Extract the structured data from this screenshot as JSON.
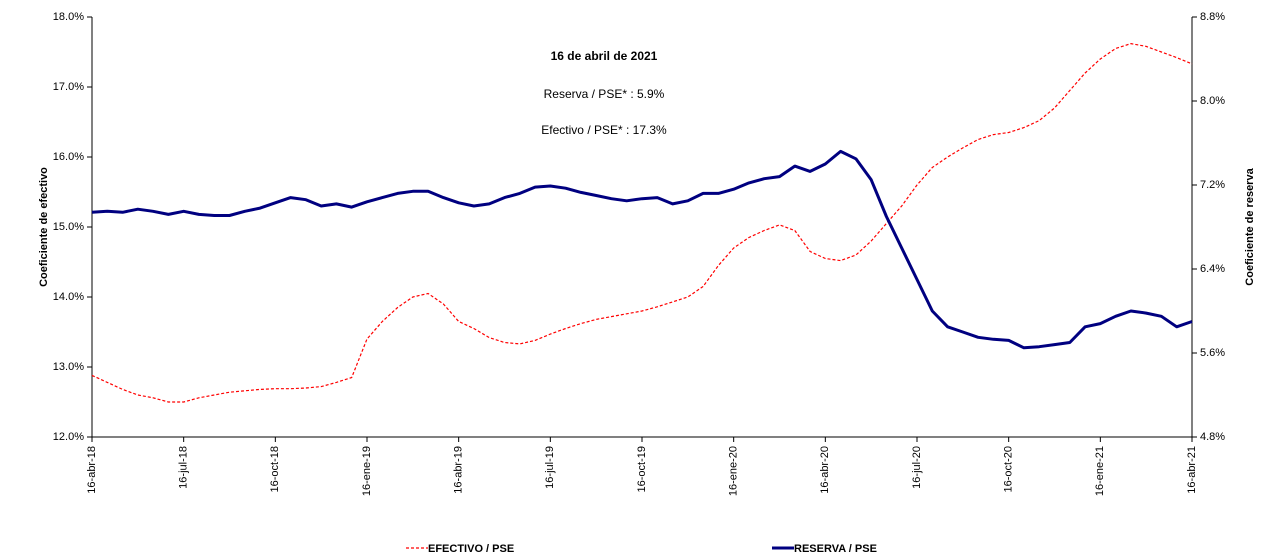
{
  "chart_data": {
    "type": "line",
    "y_label": "Coeficiente de efectivo",
    "y2_label": "Coeficiente de reserva",
    "annotations": [
      "16 de abril de 2021",
      "Reserva / PSE* :   5.9%",
      "Efectivo / PSE* : 17.3%"
    ],
    "categories": [
      "16-abr-18",
      null,
      null,
      null,
      null,
      null,
      "16-jul-18",
      null,
      null,
      null,
      null,
      null,
      "16-oct-18",
      null,
      null,
      null,
      null,
      null,
      "16-ene-19",
      null,
      null,
      null,
      null,
      null,
      "16-abr-19",
      null,
      null,
      null,
      null,
      null,
      "16-jul-19",
      null,
      null,
      null,
      null,
      null,
      "16-oct-19",
      null,
      null,
      null,
      null,
      null,
      "16-ene-20",
      null,
      null,
      null,
      null,
      null,
      "16-abr-20",
      null,
      null,
      null,
      null,
      null,
      "16-jul-20",
      null,
      null,
      null,
      null,
      null,
      "16-oct-20",
      null,
      null,
      null,
      null,
      null,
      "16-ene-21",
      null,
      null,
      null,
      null,
      null,
      "16-abr-21"
    ],
    "series": [
      {
        "name": "EFECTIVO / PSE",
        "color": "#ff0000",
        "dashed": true,
        "values": [
          12.88,
          12.78,
          12.68,
          12.6,
          12.56,
          12.5,
          12.5,
          12.56,
          12.6,
          12.64,
          12.66,
          12.68,
          12.69,
          12.69,
          12.7,
          12.72,
          12.78,
          12.85,
          13.4,
          13.65,
          13.85,
          14.0,
          14.05,
          13.9,
          13.65,
          13.55,
          13.42,
          13.35,
          13.33,
          13.38,
          13.47,
          13.55,
          13.62,
          13.68,
          13.72,
          13.76,
          13.8,
          13.86,
          13.93,
          14.0,
          14.15,
          14.45,
          14.7,
          14.85,
          14.95,
          15.03,
          14.95,
          14.65,
          14.55,
          14.52,
          14.6,
          14.8,
          15.05,
          15.3,
          15.6,
          15.85,
          16.0,
          16.13,
          16.25,
          16.32,
          16.35,
          16.42,
          16.52,
          16.7,
          16.95,
          17.2,
          17.4,
          17.55,
          17.62,
          17.58,
          17.5,
          17.42,
          17.33
        ]
      },
      {
        "name": "RESERVA / PSE",
        "color": "#000080",
        "axis": "y2",
        "values": [
          6.94,
          6.95,
          6.94,
          6.97,
          6.95,
          6.92,
          6.95,
          6.92,
          6.91,
          6.91,
          6.95,
          6.98,
          7.03,
          7.08,
          7.06,
          7.0,
          7.02,
          6.99,
          7.04,
          7.08,
          7.12,
          7.14,
          7.14,
          7.08,
          7.03,
          7.0,
          7.02,
          7.08,
          7.12,
          7.18,
          7.19,
          7.17,
          7.13,
          7.1,
          7.07,
          7.05,
          7.07,
          7.08,
          7.02,
          7.05,
          7.12,
          7.12,
          7.16,
          7.22,
          7.26,
          7.28,
          7.38,
          7.33,
          7.4,
          7.52,
          7.45,
          7.25,
          6.9,
          6.6,
          6.3,
          6.0,
          5.85,
          5.8,
          5.75,
          5.73,
          5.72,
          5.65,
          5.66,
          5.68,
          5.7,
          5.85,
          5.88,
          5.95,
          6.0,
          5.98,
          5.95,
          5.85,
          5.9
        ]
      }
    ],
    "ylim": [
      12,
      18
    ],
    "yticks": [
      {
        "value": 12,
        "label": "12.0%"
      },
      {
        "value": 13,
        "label": "13.0%"
      },
      {
        "value": 14,
        "label": "14.0%"
      },
      {
        "value": 15,
        "label": "15.0%"
      },
      {
        "value": 16,
        "label": "16.0%"
      },
      {
        "value": 17,
        "label": "17.0%"
      },
      {
        "value": 18,
        "label": "18.0%"
      }
    ],
    "y2lim": [
      4.8,
      8.8
    ],
    "y2ticks": [
      {
        "value": 4.8,
        "label": "4.8%"
      },
      {
        "value": 5.6,
        "label": "5.6%"
      },
      {
        "value": 6.4,
        "label": "6.4%"
      },
      {
        "value": 7.2,
        "label": "7.2%"
      },
      {
        "value": 8.0,
        "label": "8.0%"
      },
      {
        "value": 8.8,
        "label": "8.8%"
      }
    ],
    "grid": false
  }
}
